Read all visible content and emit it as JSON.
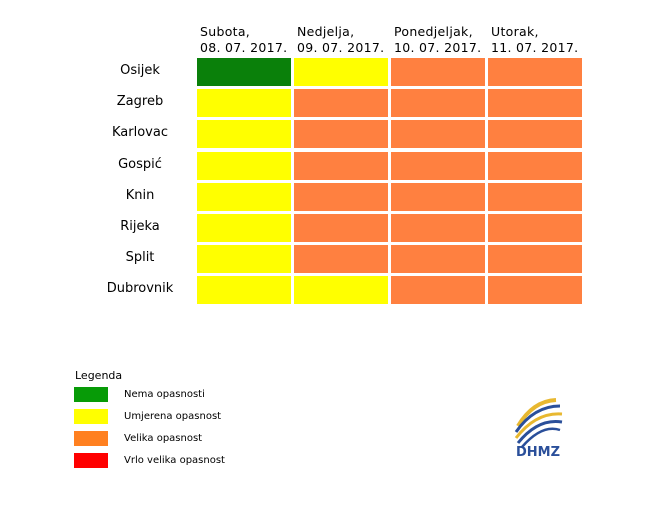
{
  "table": {
    "columns": [
      [
        "Subota,",
        "08. 07. 2017."
      ],
      [
        "Nedjelja,",
        "09. 07. 2017."
      ],
      [
        "Ponedjeljak,",
        "10. 07. 2017."
      ],
      [
        "Utorak,",
        "11. 07. 2017."
      ]
    ],
    "rows": [
      {
        "label": "Osijek",
        "cells": [
          "#0a800a",
          "#ffff00",
          "#ff8040",
          "#ff8040"
        ]
      },
      {
        "label": "Zagreb",
        "cells": [
          "#ffff00",
          "#ff8040",
          "#ff8040",
          "#ff8040"
        ]
      },
      {
        "label": "Karlovac",
        "cells": [
          "#ffff00",
          "#ff8040",
          "#ff8040",
          "#ff8040"
        ]
      },
      {
        "label": "Gospić",
        "cells": [
          "#ffff00",
          "#ff8040",
          "#ff8040",
          "#ff8040"
        ]
      },
      {
        "label": "Knin",
        "cells": [
          "#ffff00",
          "#ff8040",
          "#ff8040",
          "#ff8040"
        ]
      },
      {
        "label": "Rijeka",
        "cells": [
          "#ffff00",
          "#ff8040",
          "#ff8040",
          "#ff8040"
        ]
      },
      {
        "label": "Split",
        "cells": [
          "#ffff00",
          "#ff8040",
          "#ff8040",
          "#ff8040"
        ]
      },
      {
        "label": "Dubrovnik",
        "cells": [
          "#ffff00",
          "#ffff00",
          "#ff8040",
          "#ff8040"
        ]
      }
    ]
  },
  "legend": {
    "title": "Legenda",
    "items": [
      {
        "color": "#079b07",
        "label": "Nema opasnosti"
      },
      {
        "color": "#ffff00",
        "label": "Umjerena opasnost"
      },
      {
        "color": "#ff8020",
        "label": "Velika opasnost"
      },
      {
        "color": "#ff0000",
        "label": "Vrlo velika opasnost"
      }
    ]
  },
  "logo": {
    "text": "DHMZ"
  }
}
